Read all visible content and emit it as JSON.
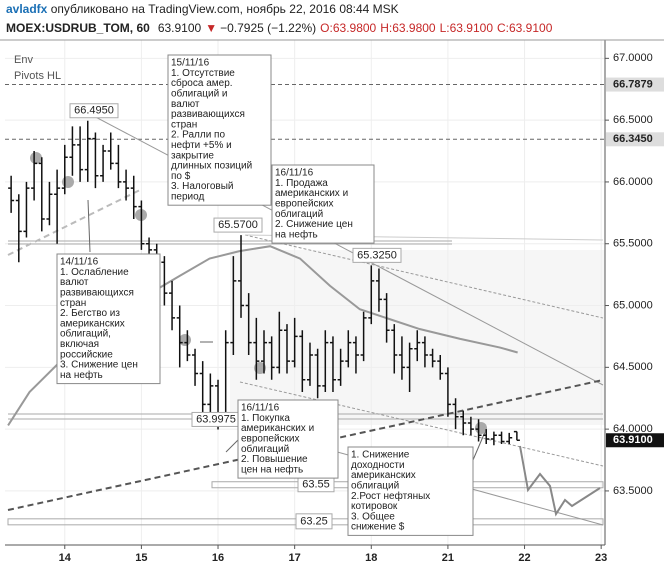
{
  "header": {
    "author": "avladfx",
    "published": "опубликовано на TradingView.com, ноябрь 22, 2016 08:44 MSK",
    "symbol": "MOEX:USDRUB_TOM, 60",
    "change": "−0.7925 (−1.22%)",
    "open": "O:63.9800",
    "high": "H:63.9800",
    "low": "L:63.9100",
    "close": "C:63.9100"
  },
  "chart_data": {
    "type": "ohlc",
    "legend": [
      "Env",
      "Pivots HL"
    ],
    "ylim": [
      63.0625,
      67.1484
    ],
    "yticks": [
      {
        "value": 67,
        "label": "67.0000"
      },
      {
        "value": 66.5,
        "label": "66.5000"
      },
      {
        "value": 66,
        "label": "66.0000"
      },
      {
        "value": 65.5,
        "label": "65.5000"
      },
      {
        "value": 65,
        "label": "65.0000"
      },
      {
        "value": 64.5,
        "label": "64.5000"
      },
      {
        "value": 64,
        "label": "64.0000"
      },
      {
        "value": 63.5,
        "label": "63.5000"
      }
    ],
    "xlim": [
      -0.78,
      7.05
    ],
    "xticks": [
      {
        "value": 0,
        "label": "14"
      },
      {
        "value": 1,
        "label": "15"
      },
      {
        "value": 2,
        "label": "16"
      },
      {
        "value": 3,
        "label": "17"
      },
      {
        "value": 4,
        "label": "18"
      },
      {
        "value": 5,
        "label": "21"
      },
      {
        "value": 6,
        "label": "22"
      },
      {
        "value": 7,
        "label": "23"
      }
    ],
    "grid": true,
    "color": "#111111",
    "x": [
      -0.7,
      -0.6,
      -0.5,
      -0.4,
      -0.3,
      -0.2,
      -0.1,
      0,
      0.1,
      0.2,
      0.3,
      0.4,
      0.5,
      0.6,
      0.7,
      0.8,
      0.9,
      1.0,
      1.1,
      1.2,
      1.3,
      1.4,
      1.5,
      1.6,
      1.7,
      1.8,
      1.9,
      2.0,
      2.1,
      2.2,
      2.3,
      2.4,
      2.5,
      2.6,
      2.7,
      2.8,
      2.9,
      3.0,
      3.1,
      3.2,
      3.3,
      3.4,
      3.5,
      3.6,
      3.7,
      3.8,
      3.9,
      4.0,
      4.1,
      4.2,
      4.3,
      4.4,
      4.5,
      4.6,
      4.7,
      4.8,
      4.9,
      5.0,
      5.1,
      5.2,
      5.3,
      5.4,
      5.5,
      5.6,
      5.7,
      5.8,
      5.9
    ],
    "open": [
      65.95,
      65.85,
      65.6,
      65.95,
      66.15,
      65.7,
      65.9,
      65.95,
      66.2,
      66.3,
      66.1,
      66.35,
      66.05,
      66.25,
      66.15,
      66.0,
      65.95,
      65.8,
      65.5,
      65.45,
      65.35,
      65.1,
      64.9,
      64.7,
      64.6,
      64.45,
      64.2,
      64.35,
      64.1,
      64.7,
      65.2,
      65.0,
      64.7,
      64.55,
      64.7,
      64.5,
      64.8,
      64.55,
      64.75,
      64.4,
      64.6,
      64.35,
      64.7,
      64.4,
      64.55,
      64.7,
      64.6,
      64.9,
      65.2,
      65.05,
      64.8,
      64.6,
      64.5,
      64.65,
      64.7,
      64.6,
      64.55,
      64.45,
      64.2,
      64.1,
      64.05,
      64.0,
      63.95,
      63.92,
      63.95,
      63.9,
      63.98
    ],
    "high": [
      66.05,
      65.9,
      66.0,
      66.25,
      66.2,
      66.0,
      66.1,
      66.3,
      66.45,
      66.45,
      66.495,
      66.4,
      66.3,
      66.4,
      66.3,
      66.1,
      66.05,
      65.85,
      65.55,
      65.5,
      65.4,
      65.2,
      65.0,
      64.8,
      64.65,
      64.55,
      64.45,
      64.4,
      64.8,
      65.4,
      65.57,
      65.1,
      64.9,
      64.8,
      64.75,
      64.95,
      64.85,
      64.9,
      64.8,
      64.7,
      64.65,
      64.8,
      64.75,
      64.65,
      64.8,
      64.75,
      64.95,
      65.325,
      65.3,
      65.1,
      64.85,
      64.75,
      64.7,
      64.8,
      64.75,
      64.65,
      64.6,
      64.5,
      64.25,
      64.15,
      64.1,
      64.08,
      64.0,
      63.98,
      63.98,
      63.97,
      63.98
    ],
    "low": [
      65.75,
      65.35,
      65.55,
      65.85,
      65.6,
      65.65,
      65.5,
      65.9,
      66.05,
      66.0,
      66.0,
      65.95,
      66.0,
      66.1,
      65.95,
      65.85,
      65.7,
      65.45,
      65.4,
      65.3,
      65.0,
      64.8,
      64.5,
      64.55,
      64.35,
      64.1,
      64.1,
      63.9975,
      64.05,
      64.6,
      64.9,
      64.6,
      64.4,
      64.45,
      64.4,
      64.45,
      64.45,
      64.5,
      64.3,
      64.35,
      64.25,
      64.3,
      64.3,
      64.35,
      64.5,
      64.45,
      64.55,
      64.85,
      64.95,
      64.7,
      64.45,
      64.4,
      64.3,
      64.55,
      64.5,
      64.5,
      64.4,
      64.1,
      64.0,
      63.95,
      63.95,
      63.9,
      63.88,
      63.87,
      63.88,
      63.88,
      63.91
    ],
    "close": [
      65.85,
      65.6,
      65.95,
      66.15,
      65.7,
      65.9,
      65.95,
      66.2,
      66.3,
      66.1,
      66.35,
      66.05,
      66.25,
      66.15,
      66.0,
      65.95,
      65.8,
      65.5,
      65.45,
      65.35,
      65.1,
      64.9,
      64.7,
      64.6,
      64.45,
      64.2,
      64.35,
      64.1,
      64.7,
      65.2,
      65.0,
      64.7,
      64.55,
      64.7,
      64.5,
      64.8,
      64.55,
      64.75,
      64.4,
      64.6,
      64.35,
      64.7,
      64.4,
      64.55,
      64.7,
      64.6,
      64.9,
      65.2,
      65.05,
      64.8,
      64.6,
      64.5,
      64.65,
      64.7,
      64.6,
      64.55,
      64.45,
      64.2,
      64.1,
      64.05,
      64.0,
      63.95,
      63.92,
      63.95,
      63.9,
      63.93,
      63.91
    ],
    "ma_x": [
      -0.74,
      -0.46,
      -0.07,
      0.46,
      0.98,
      1.5,
      1.89,
      2.28,
      2.68,
      3.07,
      3.46,
      3.85,
      4.24,
      4.63,
      5.16,
      5.68,
      5.91
    ],
    "ma_values": [
      64.03,
      64.3,
      64.54,
      64.81,
      65.05,
      65.24,
      65.38,
      65.44,
      65.48,
      65.38,
      65.16,
      64.97,
      64.89,
      64.81,
      64.73,
      64.66,
      64.62
    ],
    "ma_color": "#999999",
    "last_price": {
      "value": 63.91,
      "label": "63.9100"
    },
    "levels": [
      {
        "value": 66.7879,
        "label": "66.7879"
      },
      {
        "value": 66.345,
        "label": "66.3450"
      }
    ],
    "zones": [
      {
        "value": 63.55,
        "label": "63.55"
      },
      {
        "value": 63.25,
        "label": "63.25"
      }
    ],
    "price_labels": [
      {
        "value": 66.495,
        "label": "66.4950"
      },
      {
        "value": 65.57,
        "label": "65.5700"
      },
      {
        "value": 65.325,
        "label": "65.3250"
      },
      {
        "value": 63.9975,
        "label": "63.9975"
      }
    ],
    "annotations": [
      [
        "15/11/16",
        "1. Отсутствие",
        "сброса амер.",
        "облигаций и",
        "валют",
        "развивающихся",
        "стран",
        "2. Ралли по",
        "нефти +5% и",
        "закрытие",
        "длинных позиций",
        "по $",
        "3. Налоговый",
        "период"
      ],
      [
        "16/11/16",
        "1. Продажа",
        "американских и",
        "европейских",
        "облигаций",
        "2. Снижение цен",
        "на нефть"
      ],
      [
        "14/11/16",
        "1. Ослабление",
        "валют",
        "развивающихся",
        "стран",
        "2. Бегство из",
        "американских",
        "облигаций,",
        "включая",
        "российские",
        "3. Снижение цен",
        "на нефть"
      ],
      [
        "16/11/16",
        "1. Покупка",
        "американских и",
        "европейских",
        "облигаций",
        "2. Повышение",
        "цен на нефть"
      ],
      [
        "1. Снижение",
        "доходности",
        "американских",
        "облигаций",
        "2.Рост нефтяных",
        "котировок",
        "3. Общее",
        "снижение $"
      ]
    ]
  }
}
